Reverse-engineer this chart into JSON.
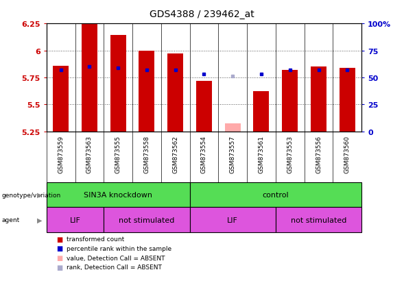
{
  "title": "GDS4388 / 239462_at",
  "samples": [
    "GSM873559",
    "GSM873563",
    "GSM873555",
    "GSM873558",
    "GSM873562",
    "GSM873554",
    "GSM873557",
    "GSM873561",
    "GSM873553",
    "GSM873556",
    "GSM873560"
  ],
  "bar_values": [
    5.86,
    6.25,
    6.14,
    6.0,
    5.97,
    5.72,
    null,
    5.62,
    5.82,
    5.85,
    5.84
  ],
  "bar_absent": [
    false,
    false,
    false,
    false,
    false,
    false,
    true,
    false,
    false,
    false,
    false
  ],
  "absent_values": [
    null,
    null,
    null,
    null,
    null,
    null,
    5.32,
    null,
    null,
    null,
    null
  ],
  "rank_values": [
    0.57,
    0.6,
    0.59,
    0.57,
    0.57,
    0.53,
    null,
    0.53,
    0.57,
    0.57,
    0.57
  ],
  "rank_absent": [
    false,
    false,
    false,
    false,
    false,
    false,
    true,
    false,
    false,
    false,
    false
  ],
  "absent_rank_values": [
    null,
    null,
    null,
    null,
    null,
    null,
    0.51,
    null,
    null,
    null,
    null
  ],
  "ymin": 5.25,
  "ymax": 6.25,
  "y_ticks": [
    5.25,
    5.5,
    5.75,
    6.0,
    6.25
  ],
  "y_tick_labels": [
    "5.25",
    "5.5",
    "5.75",
    "6",
    "6.25"
  ],
  "y2_ticks": [
    0,
    25,
    50,
    75,
    100
  ],
  "y2_tick_labels": [
    "0",
    "25",
    "50",
    "75",
    "100%"
  ],
  "bar_color": "#cc0000",
  "absent_bar_color": "#ffaaaa",
  "rank_color": "#0000cc",
  "absent_rank_color": "#aaaacc",
  "bar_width": 0.55,
  "group_configs": [
    {
      "label": "SIN3A knockdown",
      "start": 0,
      "end": 5,
      "color": "#55dd55"
    },
    {
      "label": "control",
      "start": 5,
      "end": 11,
      "color": "#55dd55"
    }
  ],
  "agent_configs": [
    {
      "label": "LIF",
      "start": 0,
      "end": 2,
      "color": "#dd55dd"
    },
    {
      "label": "not stimulated",
      "start": 2,
      "end": 5,
      "color": "#dd55dd"
    },
    {
      "label": "LIF",
      "start": 5,
      "end": 8,
      "color": "#dd55dd"
    },
    {
      "label": "not stimulated",
      "start": 8,
      "end": 11,
      "color": "#dd55dd"
    }
  ],
  "legend_items": [
    {
      "label": "transformed count",
      "color": "#cc0000"
    },
    {
      "label": "percentile rank within the sample",
      "color": "#0000cc"
    },
    {
      "label": "value, Detection Call = ABSENT",
      "color": "#ffaaaa"
    },
    {
      "label": "rank, Detection Call = ABSENT",
      "color": "#aaaacc"
    }
  ],
  "plot_bg_color": "#dddddd",
  "sample_box_color": "#cccccc",
  "white": "#ffffff"
}
